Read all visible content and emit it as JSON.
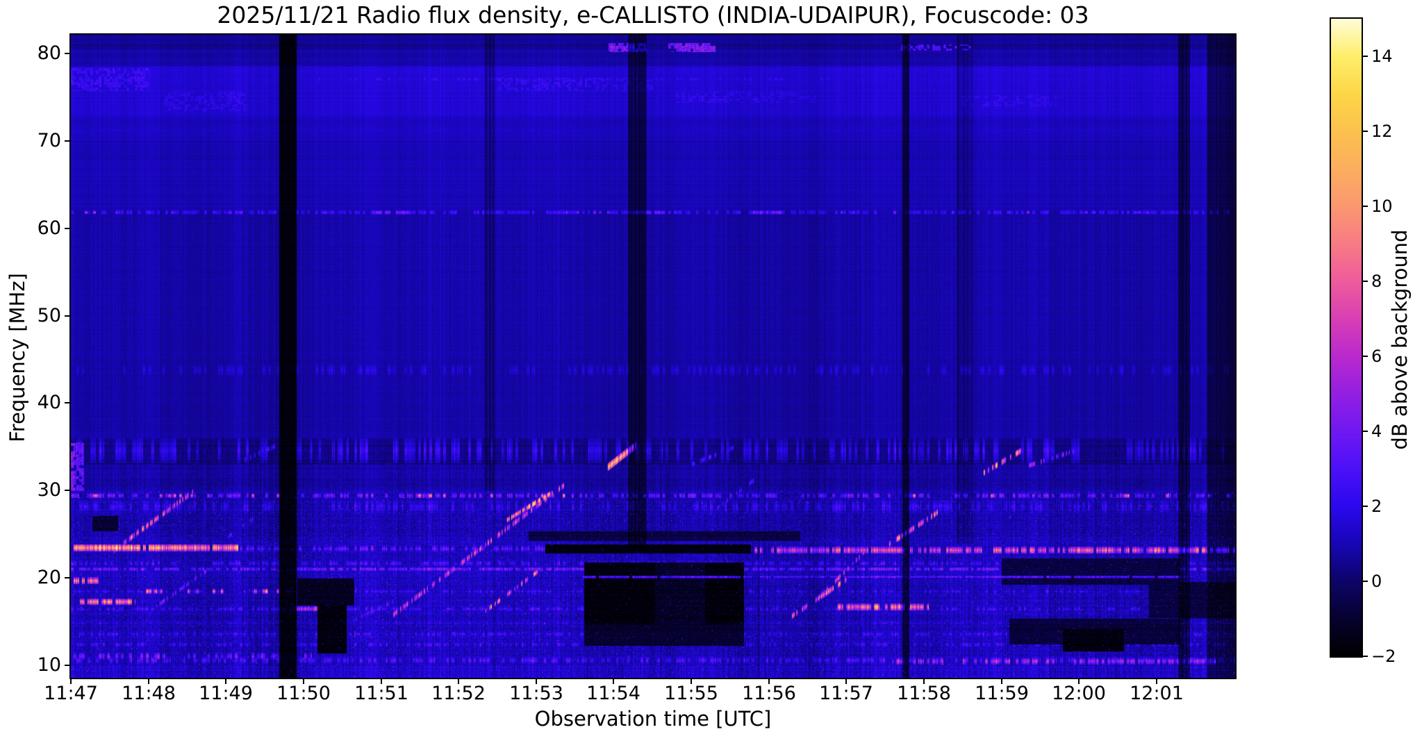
{
  "title": "2025/11/21  Radio flux density, e-CALLISTO (INDIA-UDAIPUR), Focuscode: 03",
  "axes": {
    "xlabel": "Observation time [UTC]",
    "ylabel": "Frequency [MHz]",
    "x_ticks": [
      "11:47",
      "11:48",
      "11:49",
      "11:50",
      "11:51",
      "11:52",
      "11:53",
      "11:54",
      "11:55",
      "11:56",
      "11:57",
      "11:58",
      "11:59",
      "12:00",
      "12:01"
    ],
    "y_ticks": [
      "80",
      "70",
      "60",
      "50",
      "40",
      "30",
      "20",
      "10"
    ]
  },
  "colorbar": {
    "label": "dB above background",
    "ticks": [
      "14",
      "12",
      "10",
      "8",
      "6",
      "4",
      "2",
      "0",
      "−2"
    ],
    "tick_values": [
      14,
      12,
      10,
      8,
      6,
      4,
      2,
      0,
      -2
    ],
    "min_db": -2,
    "max_db": 15
  },
  "chart_data": {
    "type": "heatmap",
    "title": "2025/11/21  Radio flux density, e-CALLISTO (INDIA-UDAIPUR), Focuscode: 03",
    "xlabel": "Observation time [UTC]",
    "ylabel": "Frequency [MHz]",
    "x_tick_labels": [
      "11:47",
      "11:48",
      "11:49",
      "11:50",
      "11:51",
      "11:52",
      "11:53",
      "11:54",
      "11:55",
      "11:56",
      "11:57",
      "11:58",
      "11:59",
      "12:00",
      "12:01"
    ],
    "x_range_minutes": [
      0,
      15.05
    ],
    "x_start_label": "11:47",
    "y_range_mhz": [
      8.57,
      82.3
    ],
    "y_tick_values_mhz": [
      80,
      70,
      60,
      50,
      40,
      30,
      20,
      10
    ],
    "value_range_db": [
      -2,
      15
    ],
    "legend_position": "right-colorbar",
    "grid": false,
    "colormap_stops": [
      [
        -2,
        "#000000"
      ],
      [
        -1,
        "#06022e"
      ],
      [
        0,
        "#0d0468"
      ],
      [
        1,
        "#1706b6"
      ],
      [
        2,
        "#2b08ee"
      ],
      [
        3,
        "#4c10f8"
      ],
      [
        4,
        "#6f18f2"
      ],
      [
        5,
        "#941fe2"
      ],
      [
        6,
        "#b929cc"
      ],
      [
        7,
        "#d83fb4"
      ],
      [
        8,
        "#ee5b9b"
      ],
      [
        9,
        "#f87b85"
      ],
      [
        10,
        "#fb9770"
      ],
      [
        11,
        "#fcae5e"
      ],
      [
        12,
        "#fcc14d"
      ],
      [
        13,
        "#fdd648"
      ],
      [
        14,
        "#feee6a"
      ],
      [
        15,
        "#fffcd8"
      ]
    ],
    "features": {
      "bands": [
        [
          8.5,
          82.3,
          0.9
        ],
        [
          73,
          78.5,
          1.5
        ],
        [
          70,
          73,
          1.2
        ],
        [
          62.3,
          70,
          1.05
        ],
        [
          81.3,
          82.3,
          0.62
        ],
        [
          80.55,
          81.15,
          0.5
        ],
        [
          45,
          62.3,
          0.85
        ],
        [
          36,
          45,
          0.8
        ],
        [
          33,
          36,
          0.35
        ],
        [
          30,
          33,
          0.75
        ],
        [
          25,
          30,
          1.0
        ],
        [
          21.5,
          25,
          1.05
        ],
        [
          10,
          21.5,
          1.18
        ],
        [
          8.5,
          10,
          1.45
        ]
      ],
      "noise_zones": [
        [
          62,
          82.3,
          0.3
        ],
        [
          36,
          62,
          0.34
        ],
        [
          30,
          36,
          0.85
        ],
        [
          8.5,
          30,
          1.15
        ]
      ],
      "h_lines": [
        [
          61.85,
          0.28,
          0,
          15.05,
          2.6,
          0.55
        ],
        [
          61.85,
          0.2,
          0,
          15.05,
          4.2,
          0.1
        ],
        [
          61.85,
          0.15,
          0.18,
          0.45,
          6.5,
          0.5
        ],
        [
          61.85,
          0.22,
          3.9,
          4.35,
          4.6,
          0.8
        ],
        [
          61.85,
          0.22,
          7.25,
          7.65,
          4.6,
          0.8
        ],
        [
          61.85,
          0.22,
          8.75,
          9.2,
          4.6,
          0.8
        ],
        [
          77.1,
          0.3,
          3.2,
          9.8,
          2.3,
          0.35
        ],
        [
          43.8,
          0.8,
          0,
          15.05,
          1.7,
          0.3
        ],
        [
          34.6,
          1.4,
          0,
          15.05,
          2.1,
          0.35
        ],
        [
          29.45,
          0.3,
          0,
          15.05,
          4.0,
          0.45
        ],
        [
          29.45,
          0.25,
          0,
          15.05,
          8.2,
          0.05
        ],
        [
          28.2,
          0.8,
          0,
          15.05,
          2.3,
          0.45
        ],
        [
          23.5,
          0.4,
          0,
          2.15,
          10.5,
          0.97
        ],
        [
          23.4,
          0.35,
          2.15,
          6.1,
          3.4,
          0.5
        ],
        [
          23.2,
          0.4,
          8.78,
          15.05,
          6.8,
          0.7
        ],
        [
          23.2,
          0.4,
          12.9,
          15.05,
          8.2,
          0.5
        ],
        [
          21.7,
          0.3,
          0,
          15.05,
          2.7,
          0.5
        ],
        [
          21.05,
          0.22,
          0,
          15.05,
          3.9,
          0.8
        ],
        [
          18.5,
          0.3,
          0.9,
          2.85,
          8.6,
          0.35
        ],
        [
          18.5,
          0.3,
          0,
          15.05,
          2.4,
          0.45
        ],
        [
          17.3,
          0.35,
          0.12,
          0.82,
          9.5,
          0.85
        ],
        [
          19.7,
          0.4,
          0.02,
          0.35,
          9.0,
          0.85
        ],
        [
          16.5,
          0.28,
          0,
          15.05,
          2.8,
          0.5
        ],
        [
          16.5,
          0.28,
          2.68,
          3.55,
          7.0,
          0.9
        ],
        [
          16.7,
          0.4,
          9.85,
          11.05,
          8.5,
          0.75
        ],
        [
          14.85,
          0.3,
          0,
          15.05,
          1.8,
          0.35
        ],
        [
          13.6,
          0.3,
          0,
          15.05,
          2.5,
          0.45
        ],
        [
          12.4,
          0.3,
          0,
          15.05,
          2.6,
          0.45
        ],
        [
          11.1,
          0.4,
          0,
          3.1,
          4.3,
          0.45
        ],
        [
          10.6,
          0.4,
          0,
          15.05,
          3.0,
          0.5
        ],
        [
          10.5,
          0.35,
          10.6,
          14.75,
          5.5,
          0.55
        ]
      ],
      "overlay_lines": [
        [
          20.15,
          0.14,
          6.6,
          14.4,
          3.7,
          0.95
        ]
      ],
      "diagonals": [
        [
          0.55,
          23.2,
          1.62,
          30.2,
          0.35,
          7.5,
          0.5
        ],
        [
          1.1,
          16.8,
          1.8,
          21.2,
          0.3,
          4.5,
          0.45
        ],
        [
          2.0,
          24.6,
          2.62,
          28.6,
          0.3,
          3.2,
          0.4
        ],
        [
          4.15,
          15.8,
          6.35,
          30.6,
          0.35,
          6.5,
          0.55
        ],
        [
          5.5,
          26.0,
          6.2,
          29.8,
          0.3,
          9.5,
          0.6
        ],
        [
          5.35,
          16.3,
          6.02,
          20.8,
          0.3,
          8.0,
          0.55
        ],
        [
          6.92,
          32.7,
          7.28,
          35.2,
          0.45,
          12.5,
          0.85
        ],
        [
          3.3,
          13.8,
          4.15,
          17.3,
          0.3,
          3.0,
          0.35
        ],
        [
          8.3,
          27.8,
          8.8,
          31.2,
          0.3,
          3.3,
          0.35
        ],
        [
          9.3,
          15.7,
          10.0,
          19.9,
          0.35,
          9.0,
          0.55
        ],
        [
          9.6,
          17.4,
          10.25,
          23.2,
          0.3,
          6.5,
          0.45
        ],
        [
          10.55,
          23.9,
          11.2,
          27.7,
          0.35,
          8.5,
          0.55
        ],
        [
          11.68,
          31.6,
          12.25,
          34.6,
          0.35,
          8.5,
          0.55
        ],
        [
          12.35,
          32.9,
          12.95,
          34.6,
          0.3,
          4.2,
          0.4
        ],
        [
          2.2,
          33.4,
          2.75,
          35.6,
          0.3,
          3.0,
          0.35
        ],
        [
          8.0,
          33.0,
          8.55,
          35.0,
          0.3,
          2.6,
          0.3
        ]
      ],
      "blobs": [
        [
          80.2,
          81.2,
          6.93,
          7.42,
          4.5,
          0.8
        ],
        [
          80.2,
          81.2,
          7.7,
          8.3,
          4.3,
          0.75
        ],
        [
          80.4,
          81.0,
          10.7,
          11.6,
          3.2,
          0.5
        ],
        [
          75.8,
          78.3,
          0.0,
          1.0,
          2.4,
          0.6
        ],
        [
          73.5,
          75.6,
          1.2,
          2.25,
          2.1,
          0.5
        ],
        [
          75.8,
          77.2,
          5.5,
          7.5,
          2.2,
          0.5
        ],
        [
          74.4,
          75.6,
          7.8,
          9.6,
          2.1,
          0.5
        ],
        [
          74.0,
          75.2,
          11.5,
          12.7,
          2.0,
          0.5
        ],
        [
          30.0,
          35.5,
          0.0,
          0.16,
          3.5,
          0.8
        ]
      ],
      "dark_rects": [
        [
          6.12,
          8.76,
          22.85,
          23.8,
          -1.9
        ],
        [
          6.62,
          7.52,
          14.8,
          21.8,
          -1.9
        ],
        [
          8.18,
          8.67,
          14.8,
          21.8,
          -1.9
        ],
        [
          7.52,
          8.18,
          14.8,
          21.8,
          -1.25
        ],
        [
          6.62,
          8.67,
          12.3,
          14.8,
          -1.1
        ],
        [
          5.9,
          9.4,
          24.3,
          25.3,
          -0.75
        ],
        [
          3.18,
          3.55,
          11.4,
          16.8,
          -1.8
        ],
        [
          2.92,
          3.65,
          16.9,
          19.9,
          -1.35
        ],
        [
          12.79,
          13.57,
          11.7,
          14.1,
          -1.8
        ],
        [
          12.0,
          14.3,
          19.3,
          22.2,
          -0.8
        ],
        [
          12.1,
          14.3,
          12.5,
          15.3,
          -0.85
        ],
        [
          13.9,
          15.05,
          15.5,
          19.5,
          -0.7
        ],
        [
          0.28,
          0.6,
          25.4,
          27.1,
          -1.0
        ]
      ],
      "dark_cols": [
        [
          2.69,
          2.9,
          8.5,
          82.3,
          0.12
        ],
        [
          7.18,
          7.42,
          23.0,
          82.3,
          0.5
        ],
        [
          10.72,
          10.8,
          8.5,
          82.3,
          0.4
        ],
        [
          14.28,
          14.42,
          8.5,
          82.3,
          0.5
        ],
        [
          14.65,
          15.05,
          8.5,
          82.3,
          0.5
        ],
        [
          5.32,
          5.46,
          30,
          82.3,
          0.78
        ],
        [
          11.42,
          11.62,
          24,
          82.3,
          0.82
        ]
      ]
    }
  }
}
